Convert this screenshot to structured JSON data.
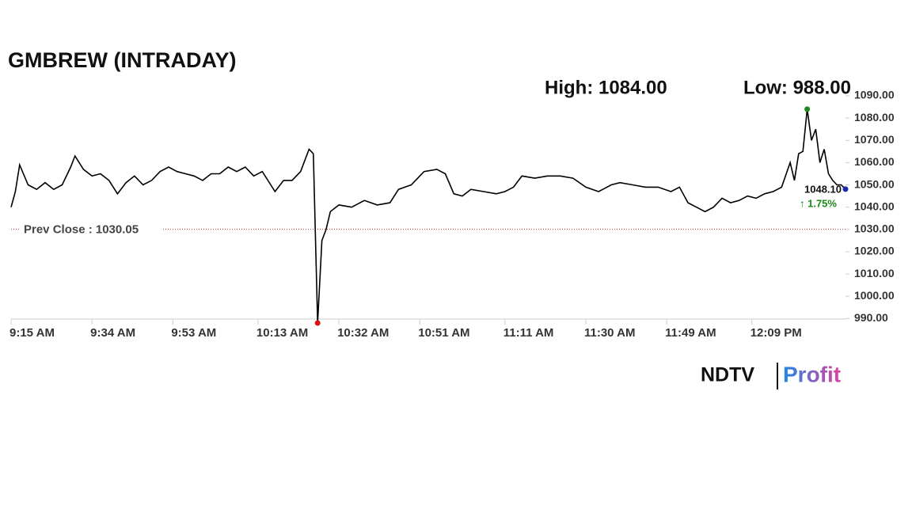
{
  "chart_data": {
    "type": "line",
    "title": "GMBREW (INTRADAY)",
    "high_label": "High: 1084.00",
    "low_label": "Low: 988.00",
    "prev_close": {
      "value": 1030.05,
      "label": "Prev Close : 1030.05"
    },
    "last_label": "1048.10",
    "change_label": "↑ 1.75%",
    "brand": [
      "NDTV",
      "Profit"
    ],
    "series": [
      {
        "color": "#000000",
        "x": [
          "9:15 AM",
          "9:16 AM",
          "9:17 AM",
          "9:19 AM",
          "9:21 AM",
          "9:23 AM",
          "9:25 AM",
          "9:27 AM",
          "9:29 AM",
          "9:30 AM",
          "9:32 AM",
          "9:34 AM",
          "9:36 AM",
          "9:38 AM",
          "9:40 AM",
          "9:42 AM",
          "9:44 AM",
          "9:46 AM",
          "9:48 AM",
          "9:50 AM",
          "9:52 AM",
          "9:54 AM",
          "9:56 AM",
          "9:58 AM",
          "10:00 AM",
          "10:02 AM",
          "10:04 AM",
          "10:06 AM",
          "10:08 AM",
          "10:10 AM",
          "10:12 AM",
          "10:14 AM",
          "10:16 AM",
          "10:17 AM",
          "10:19 AM",
          "10:21 AM",
          "10:23 AM",
          "10:25 AM",
          "10:26 AM",
          "10:27 AM",
          "10:28 AM",
          "10:29 AM",
          "10:30 AM",
          "10:32 AM",
          "10:35 AM",
          "10:38 AM",
          "10:41 AM",
          "10:44 AM",
          "10:46 AM",
          "10:49 AM",
          "10:52 AM",
          "10:55 AM",
          "10:57 AM",
          "10:59 AM",
          "11:01 AM",
          "11:03 AM",
          "11:06 AM",
          "11:09 AM",
          "11:11 AM",
          "11:13 AM",
          "11:15 AM",
          "11:18 AM",
          "11:21 AM",
          "11:24 AM",
          "11:27 AM",
          "11:30 AM",
          "11:33 AM",
          "11:36 AM",
          "11:38 AM",
          "11:41 AM",
          "11:44 AM",
          "11:47 AM",
          "11:50 AM",
          "11:52 AM",
          "11:54 AM",
          "11:56 AM",
          "11:58 AM",
          "12:00 PM",
          "12:02 PM",
          "12:04 PM",
          "12:06 PM",
          "12:08 PM",
          "12:10 PM",
          "12:12 PM",
          "12:14 PM",
          "12:16 PM",
          "12:18 PM",
          "12:19 PM",
          "12:20 PM",
          "12:21 PM",
          "12:22 PM",
          "12:23 PM",
          "12:24 PM",
          "12:25 PM",
          "12:26 PM",
          "12:27 PM",
          "12:28 PM",
          "12:29 PM",
          "12:30 PM",
          "12:31 PM"
        ],
        "values": [
          1040,
          1047,
          1059,
          1050,
          1048,
          1051,
          1048,
          1050,
          1058,
          1063,
          1057,
          1054,
          1055,
          1052,
          1046,
          1051,
          1054,
          1050,
          1052,
          1056,
          1058,
          1056,
          1055,
          1054,
          1052,
          1055,
          1055,
          1058,
          1056,
          1058,
          1054,
          1056,
          1050,
          1047,
          1052,
          1052,
          1056,
          1066,
          1064,
          988,
          1025,
          1030,
          1038,
          1041,
          1040,
          1043,
          1041,
          1042,
          1048,
          1050,
          1056,
          1057,
          1055,
          1046,
          1045,
          1048,
          1047,
          1046,
          1047,
          1049,
          1054,
          1053,
          1054,
          1054,
          1053,
          1049,
          1047,
          1050,
          1051,
          1050,
          1049,
          1049,
          1047,
          1049,
          1042,
          1040,
          1038,
          1040,
          1044,
          1042,
          1043,
          1045,
          1044,
          1046,
          1047,
          1049,
          1060,
          1052,
          1064,
          1065,
          1084,
          1070,
          1075,
          1060,
          1066,
          1055,
          1052,
          1050,
          1050,
          1048.1
        ]
      }
    ],
    "xlim": [
      "9:15 AM",
      "12:31 PM"
    ],
    "xticks": [
      "9:15 AM",
      "9:34 AM",
      "9:53 AM",
      "10:13 AM",
      "10:32 AM",
      "10:51 AM",
      "11:11 AM",
      "11:30 AM",
      "11:49 AM",
      "12:09 PM"
    ],
    "ylim": [
      988,
      1090
    ],
    "yticks": [
      {
        "value": 990,
        "label": "990.00"
      },
      {
        "value": 1000,
        "label": "1000.00"
      },
      {
        "value": 1010,
        "label": "1010.00"
      },
      {
        "value": 1020,
        "label": "1020.00"
      },
      {
        "value": 1030,
        "label": "1030.00"
      },
      {
        "value": 1040,
        "label": "1040.00"
      },
      {
        "value": 1050,
        "label": "1050.00"
      },
      {
        "value": 1060,
        "label": "1060.00"
      },
      {
        "value": 1070,
        "label": "1070.00"
      },
      {
        "value": 1080,
        "label": "1080.00"
      },
      {
        "value": 1090,
        "label": "1090.00"
      }
    ]
  }
}
